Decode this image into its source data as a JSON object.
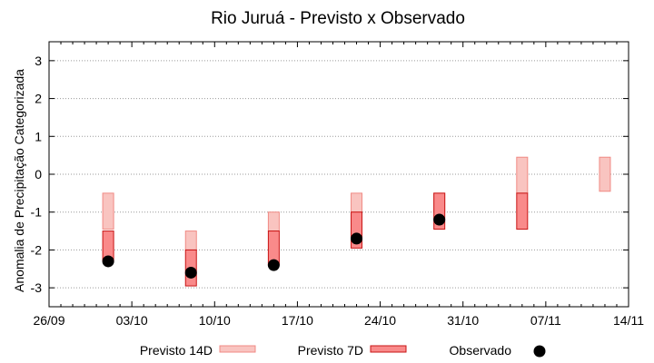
{
  "chart_data": {
    "type": "range-bar-scatter",
    "title": "Rio Juruá - Previsto x Observado",
    "xlabel": "",
    "ylabel": "Anomalia de Precipitação Categorizada",
    "xlim": [
      "2024-09-26",
      "2024-11-14"
    ],
    "ylim": [
      -3.5,
      3.5
    ],
    "x_ticks": [
      {
        "date": "2024-09-26",
        "label": "26/09"
      },
      {
        "date": "2024-10-03",
        "label": "03/10"
      },
      {
        "date": "2024-10-10",
        "label": "10/10"
      },
      {
        "date": "2024-10-17",
        "label": "17/10"
      },
      {
        "date": "2024-10-24",
        "label": "24/10"
      },
      {
        "date": "2024-10-31",
        "label": "31/10"
      },
      {
        "date": "2024-11-07",
        "label": "07/11"
      },
      {
        "date": "2024-11-14",
        "label": "14/11"
      }
    ],
    "y_ticks": [
      3,
      2,
      1,
      0,
      -1,
      -2,
      -3
    ],
    "grid": "horizontal dotted",
    "legend_position": "bottom",
    "series": [
      {
        "name": "Previsto 14D",
        "kind": "range",
        "fill": "#f9c4c0",
        "stroke": "#f08a84",
        "points": [
          {
            "x": "2024-10-01",
            "low": -1.45,
            "high": -0.5
          },
          {
            "x": "2024-10-08",
            "low": -2.0,
            "high": -1.5
          },
          {
            "x": "2024-10-15",
            "low": -1.5,
            "high": -1.0
          },
          {
            "x": "2024-10-22",
            "low": -1.0,
            "high": -0.5
          },
          {
            "x": "2024-10-29",
            "low": -1.0,
            "high": -0.5
          },
          {
            "x": "2024-11-05",
            "low": -0.5,
            "high": 0.45
          },
          {
            "x": "2024-11-12",
            "low": -0.45,
            "high": 0.45
          }
        ]
      },
      {
        "name": "Previsto 7D",
        "kind": "range",
        "fill": "#f98a8a",
        "stroke": "#c81414",
        "points": [
          {
            "x": "2024-10-01",
            "low": -2.3,
            "high": -1.5
          },
          {
            "x": "2024-10-08",
            "low": -2.95,
            "high": -2.0
          },
          {
            "x": "2024-10-15",
            "low": -2.4,
            "high": -1.5
          },
          {
            "x": "2024-10-22",
            "low": -1.95,
            "high": -1.0
          },
          {
            "x": "2024-10-29",
            "low": -1.45,
            "high": -0.5
          },
          {
            "x": "2024-11-05",
            "low": -1.45,
            "high": -0.5
          }
        ]
      },
      {
        "name": "Observado",
        "kind": "scatter",
        "color": "#000000",
        "points": [
          {
            "x": "2024-10-01",
            "y": -2.3
          },
          {
            "x": "2024-10-08",
            "y": -2.6
          },
          {
            "x": "2024-10-15",
            "y": -2.4
          },
          {
            "x": "2024-10-22",
            "y": -1.7
          },
          {
            "x": "2024-10-29",
            "y": -1.2
          }
        ]
      }
    ]
  }
}
